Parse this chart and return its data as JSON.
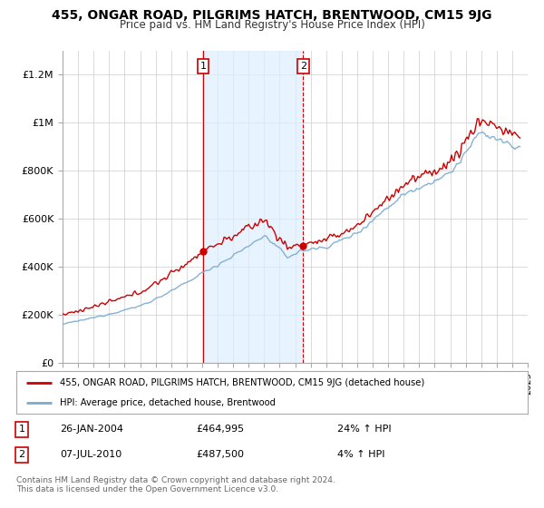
{
  "title": "455, ONGAR ROAD, PILGRIMS HATCH, BRENTWOOD, CM15 9JG",
  "subtitle": "Price paid vs. HM Land Registry's House Price Index (HPI)",
  "footer": "Contains HM Land Registry data © Crown copyright and database right 2024.\nThis data is licensed under the Open Government Licence v3.0.",
  "legend_line1": "455, ONGAR ROAD, PILGRIMS HATCH, BRENTWOOD, CM15 9JG (detached house)",
  "legend_line2": "HPI: Average price, detached house, Brentwood",
  "transaction1": {
    "label": "1",
    "date": "26-JAN-2004",
    "price": "£464,995",
    "change": "24% ↑ HPI"
  },
  "transaction2": {
    "label": "2",
    "date": "07-JUL-2010",
    "price": "£487,500",
    "change": "4% ↑ HPI"
  },
  "background_color": "#ffffff",
  "plot_bg_color": "#ffffff",
  "grid_color": "#cccccc",
  "hpi_color": "#7aaacf",
  "price_color": "#cc0000",
  "marker_color": "#cc0000",
  "shaded_color": "#ddeeff",
  "vline1_color": "#cc0000",
  "vline2_color": "#cc0000",
  "ylim": [
    0,
    1300000
  ],
  "yticks": [
    0,
    200000,
    400000,
    600000,
    800000,
    1000000,
    1200000
  ],
  "ytick_labels": [
    "£0",
    "£200K",
    "£400K",
    "£600K",
    "£800K",
    "£1M",
    "£1.2M"
  ],
  "year_start": 1995,
  "year_end": 2025,
  "transaction1_year": 2004.07,
  "transaction2_year": 2010.52,
  "transaction1_price": 464995,
  "transaction2_price": 487500
}
